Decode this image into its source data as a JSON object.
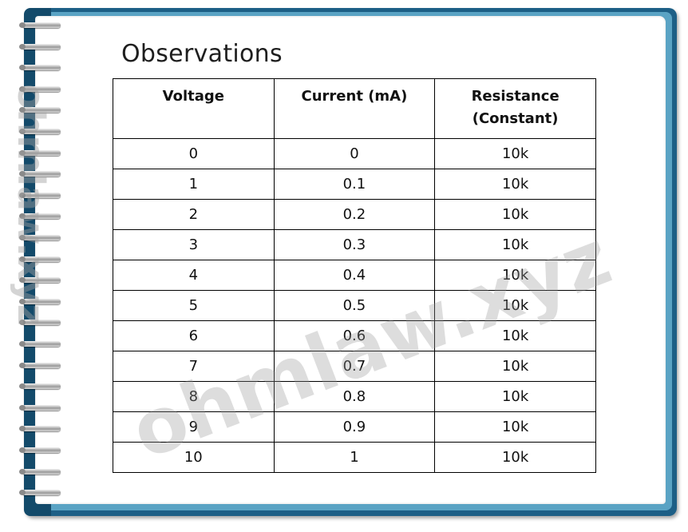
{
  "title": "Observations",
  "columns": [
    "Voltage",
    "Current (mA)",
    "Resistance (Constant)"
  ],
  "rows": [
    {
      "voltage": "0",
      "current": "0",
      "resistance": "10k"
    },
    {
      "voltage": "1",
      "current": "0.1",
      "resistance": "10k"
    },
    {
      "voltage": "2",
      "current": "0.2",
      "resistance": "10k"
    },
    {
      "voltage": "3",
      "current": "0.3",
      "resistance": "10k"
    },
    {
      "voltage": "4",
      "current": "0.4",
      "resistance": "10k"
    },
    {
      "voltage": "5",
      "current": "0.5",
      "resistance": "10k"
    },
    {
      "voltage": "6",
      "current": "0.6",
      "resistance": "10k"
    },
    {
      "voltage": "7",
      "current": "0.7",
      "resistance": "10k"
    },
    {
      "voltage": "8",
      "current": "0.8",
      "resistance": "10k"
    },
    {
      "voltage": "9",
      "current": "0.9",
      "resistance": "10k"
    },
    {
      "voltage": "10",
      "current": "1",
      "resistance": "10k"
    }
  ],
  "watermark": "ohmlaw.xyz",
  "colors": {
    "frame": "#1d5f86",
    "frame_light": "#5aa3c4",
    "paper": "#ffffff"
  }
}
